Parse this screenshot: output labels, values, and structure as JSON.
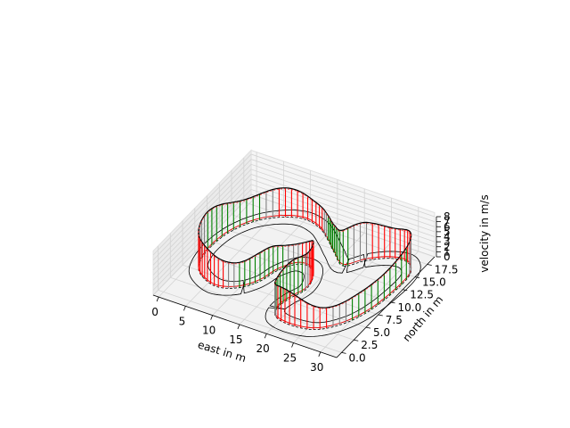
{
  "chart_data": {
    "type": "line",
    "projection": "3d",
    "xlabel": "east in m",
    "ylabel": "north in m",
    "zlabel": "velocity in m/s",
    "xlim": [
      -1,
      33
    ],
    "ylim": [
      -1,
      19
    ],
    "zlim": [
      0,
      8
    ],
    "x_ticks": [
      "0",
      "5",
      "10",
      "15",
      "20",
      "25",
      "30"
    ],
    "y_ticks": [
      "0.0",
      "2.5",
      "5.0",
      "7.5",
      "10.0",
      "12.5",
      "15.0",
      "17.5"
    ],
    "z_ticks": [
      "0",
      "1",
      "2",
      "3",
      "4",
      "5",
      "6",
      "7",
      "8"
    ],
    "grid": true,
    "stem_colors": [
      "green",
      "red",
      "gray"
    ],
    "track_path": [
      [
        21.5,
        13.0
      ],
      [
        24.0,
        15.0
      ],
      [
        27.0,
        16.5
      ],
      [
        30.0,
        16.8
      ],
      [
        32.0,
        15.0
      ],
      [
        32.0,
        11.0
      ],
      [
        31.0,
        7.0
      ],
      [
        29.0,
        4.0
      ],
      [
        26.0,
        2.0
      ],
      [
        22.0,
        1.5
      ],
      [
        19.0,
        2.0
      ],
      [
        18.0,
        3.5
      ],
      [
        18.5,
        5.5
      ],
      [
        19.5,
        7.5
      ],
      [
        19.0,
        9.5
      ],
      [
        17.5,
        11.0
      ],
      [
        15.0,
        11.0
      ],
      [
        13.0,
        9.0
      ],
      [
        12.0,
        6.5
      ],
      [
        10.0,
        4.5
      ],
      [
        7.0,
        3.5
      ],
      [
        4.0,
        4.0
      ],
      [
        1.5,
        5.5
      ],
      [
        0.5,
        8.5
      ],
      [
        1.0,
        12.0
      ],
      [
        3.0,
        15.0
      ],
      [
        6.0,
        17.0
      ],
      [
        9.5,
        18.0
      ],
      [
        13.0,
        17.5
      ],
      [
        16.0,
        16.0
      ],
      [
        18.5,
        14.5
      ]
    ]
  }
}
